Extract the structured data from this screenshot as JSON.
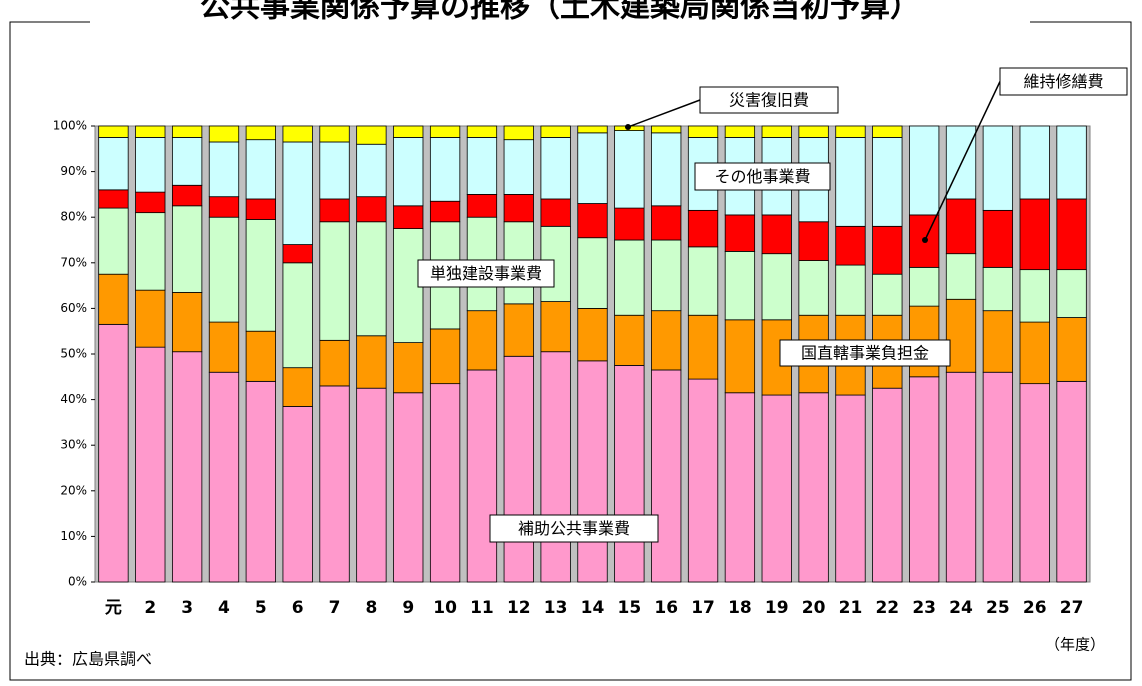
{
  "chart_data": {
    "type": "stacked_bar",
    "title": "公共事業関係予算の推移（土木建築局関係当初予算）",
    "x_label": "（年度）",
    "source": "出典：広島県調べ",
    "categories": [
      "元",
      "2",
      "3",
      "4",
      "5",
      "6",
      "7",
      "8",
      "9",
      "10",
      "11",
      "12",
      "13",
      "14",
      "15",
      "16",
      "17",
      "18",
      "19",
      "20",
      "21",
      "22",
      "23",
      "24",
      "25",
      "26",
      "27"
    ],
    "series": [
      {
        "name": "補助公共事業費",
        "color": "#ff99cc",
        "values": [
          56.5,
          51.5,
          50.5,
          46,
          44,
          38.5,
          43,
          42.5,
          41.5,
          43.5,
          46.5,
          49.5,
          50.5,
          48.5,
          47.5,
          46.5,
          44.5,
          41.5,
          41,
          41.5,
          41,
          42.5,
          45,
          46,
          46,
          43.5,
          44
        ]
      },
      {
        "name": "国直轄事業負担金",
        "color": "#ff9900",
        "values": [
          11,
          12.5,
          13,
          11,
          11,
          8.5,
          10,
          11.5,
          11,
          12,
          13,
          11.5,
          11,
          11.5,
          11,
          13,
          14,
          16,
          16.5,
          17,
          17.5,
          16,
          15.5,
          16,
          13.5,
          13.5,
          14
        ]
      },
      {
        "name": "単独建設事業費",
        "color": "#ccffcc",
        "values": [
          14.5,
          17,
          19,
          23,
          24.5,
          23,
          26,
          25,
          25,
          23.5,
          20.5,
          18,
          16.5,
          15.5,
          16.5,
          15.5,
          15,
          15,
          14.5,
          12,
          11,
          9,
          8.5,
          10,
          9.5,
          11.5,
          10.5
        ]
      },
      {
        "name": "維持修繕費",
        "color": "#ff0000",
        "values": [
          4,
          4.5,
          4.5,
          4.5,
          4.5,
          4,
          5,
          5.5,
          5,
          4.5,
          5,
          6,
          6,
          7.5,
          7,
          7.5,
          8,
          8,
          8.5,
          8.5,
          8.5,
          10.5,
          11.5,
          12,
          12.5,
          15.5,
          15.5
        ]
      },
      {
        "name": "その他事業費",
        "color": "#ccffff",
        "values": [
          11.5,
          12,
          10.5,
          12,
          13,
          22.5,
          12.5,
          11.5,
          15,
          14,
          12.5,
          12,
          13.5,
          15.5,
          17,
          16,
          16,
          17,
          17,
          18.5,
          19.5,
          19.5,
          19.5,
          16,
          18.5,
          16,
          16
        ]
      },
      {
        "name": "災害復旧費",
        "color": "#ffff00",
        "values": [
          2.5,
          2.5,
          2.5,
          3.5,
          3,
          3.5,
          3.5,
          4,
          2.5,
          2.5,
          2.5,
          3,
          2.5,
          1.5,
          1,
          1.5,
          2.5,
          2.5,
          2.5,
          2.5,
          2.5,
          2.5,
          0,
          0,
          0,
          0,
          0
        ]
      }
    ],
    "ylim": [
      0,
      100
    ],
    "yticks": [
      {
        "value": 0,
        "label": "0%"
      },
      {
        "value": 10,
        "label": "10%"
      },
      {
        "value": 20,
        "label": "20%"
      },
      {
        "value": 30,
        "label": "30%"
      },
      {
        "value": 40,
        "label": "40%"
      },
      {
        "value": 50,
        "label": "50%"
      },
      {
        "value": 60,
        "label": "60%"
      },
      {
        "value": 70,
        "label": "70%"
      },
      {
        "value": 80,
        "label": "80%"
      },
      {
        "value": 90,
        "label": "90%"
      },
      {
        "value": 100,
        "label": "100%"
      }
    ]
  }
}
